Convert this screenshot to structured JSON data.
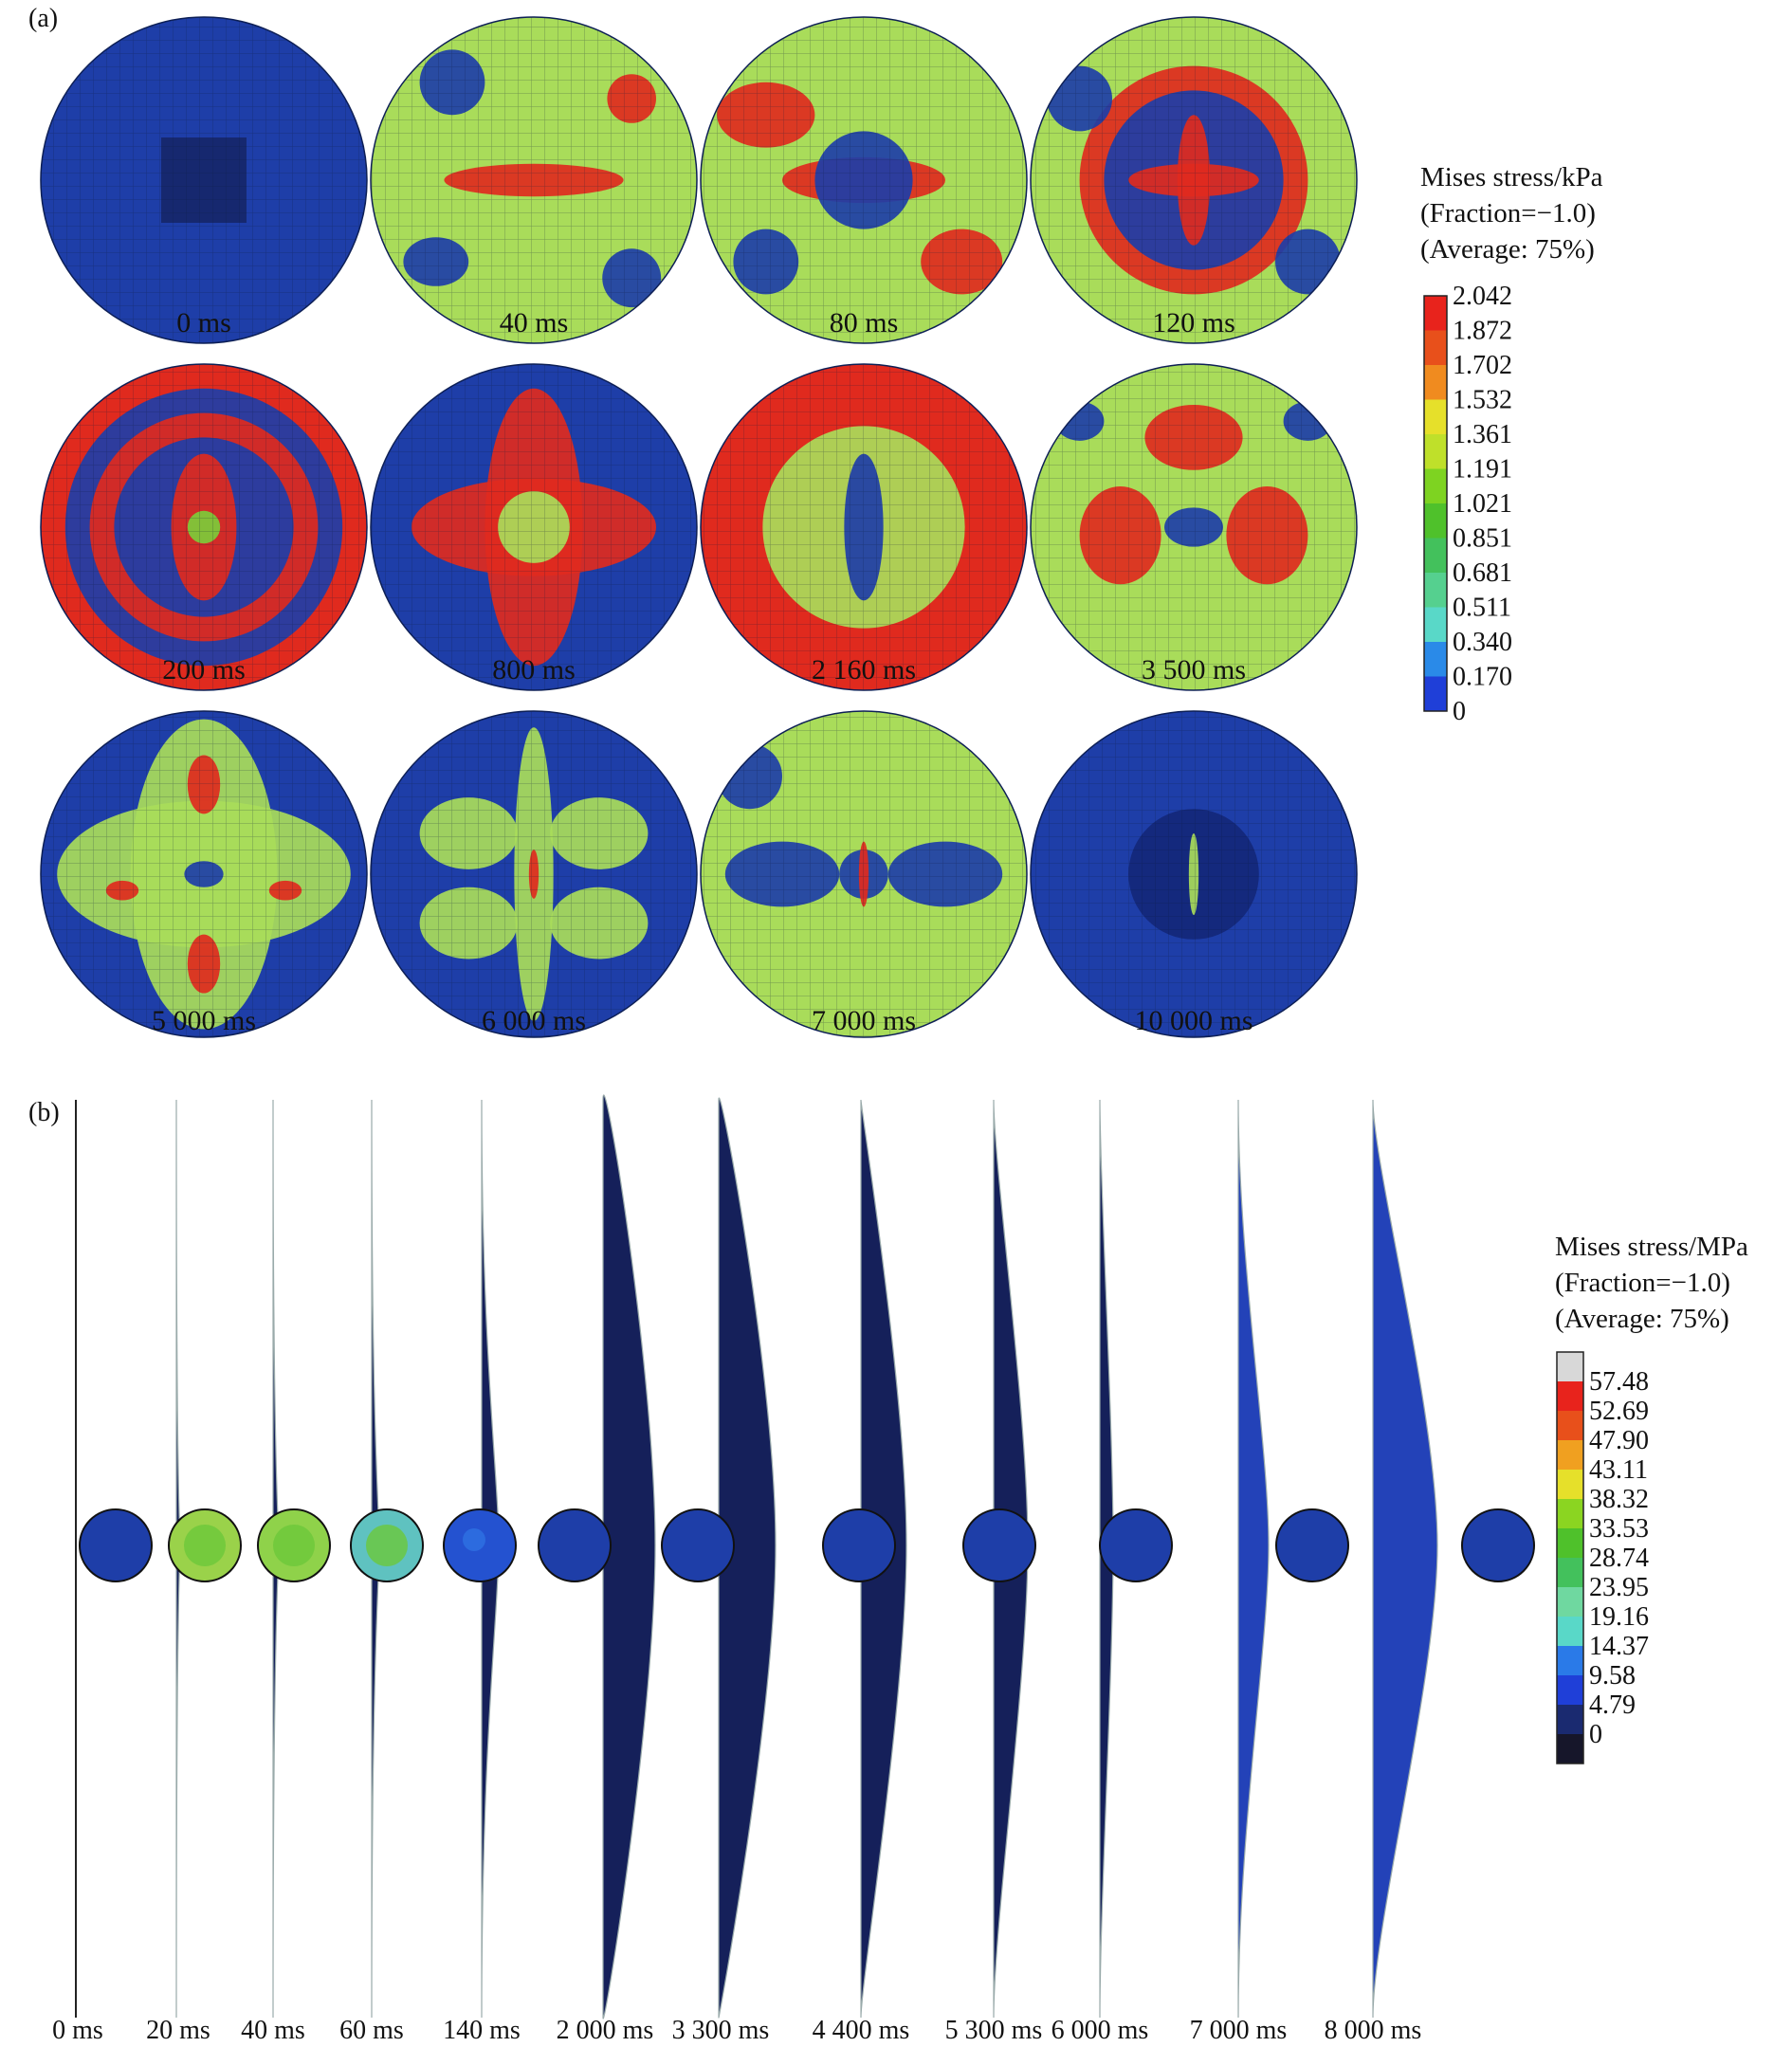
{
  "panel_a": {
    "label": "(a)",
    "times": [
      "0 ms",
      "40 ms",
      "80 ms",
      "120 ms",
      "200 ms",
      "800 ms",
      "2 160 ms",
      "3 500 ms",
      "5 000 ms",
      "6 000 ms",
      "7 000 ms",
      "10 000 ms"
    ],
    "legend": {
      "title_lines": [
        "Mises stress/kPa",
        "(Fraction=−1.0)",
        "(Average: 75%)"
      ],
      "ticks": [
        "2.042",
        "1.872",
        "1.702",
        "1.532",
        "1.361",
        "1.191",
        "1.021",
        "0.851",
        "0.681",
        "0.511",
        "0.340",
        "0.170",
        "0"
      ],
      "colors": [
        "#e8231c",
        "#e8501b",
        "#f08b1f",
        "#e6e02a",
        "#bfe02a",
        "#7ed321",
        "#4fc12b",
        "#43c15c",
        "#55d08f",
        "#59d8c8",
        "#2a8ae8",
        "#1f3fd8"
      ]
    }
  },
  "panel_b": {
    "label": "(b)",
    "times": [
      "0 ms",
      "20 ms",
      "40 ms",
      "60 ms",
      "140 ms",
      "2 000 ms",
      "3 300 ms",
      "4 400 ms",
      "5 300 ms",
      "6 000 ms",
      "7 000 ms",
      "8 000 ms"
    ],
    "legend": {
      "title_lines": [
        "Mises stress/MPa",
        "(Fraction=−1.0)",
        "(Average: 75%)"
      ],
      "ticks": [
        "57.48",
        "52.69",
        "47.90",
        "43.11",
        "38.32",
        "33.53",
        "28.74",
        "23.95",
        "19.16",
        "14.37",
        "9.58",
        "4.79",
        "0"
      ],
      "colors": [
        "#d8d8d8",
        "#e8231c",
        "#e8501b",
        "#f0a020",
        "#e6e02a",
        "#8bd521",
        "#4fc12b",
        "#43c15c",
        "#6fd8a0",
        "#59d8c8",
        "#2a7ae8",
        "#1f3fd8",
        "#1a2a70",
        "#16162a"
      ]
    }
  }
}
